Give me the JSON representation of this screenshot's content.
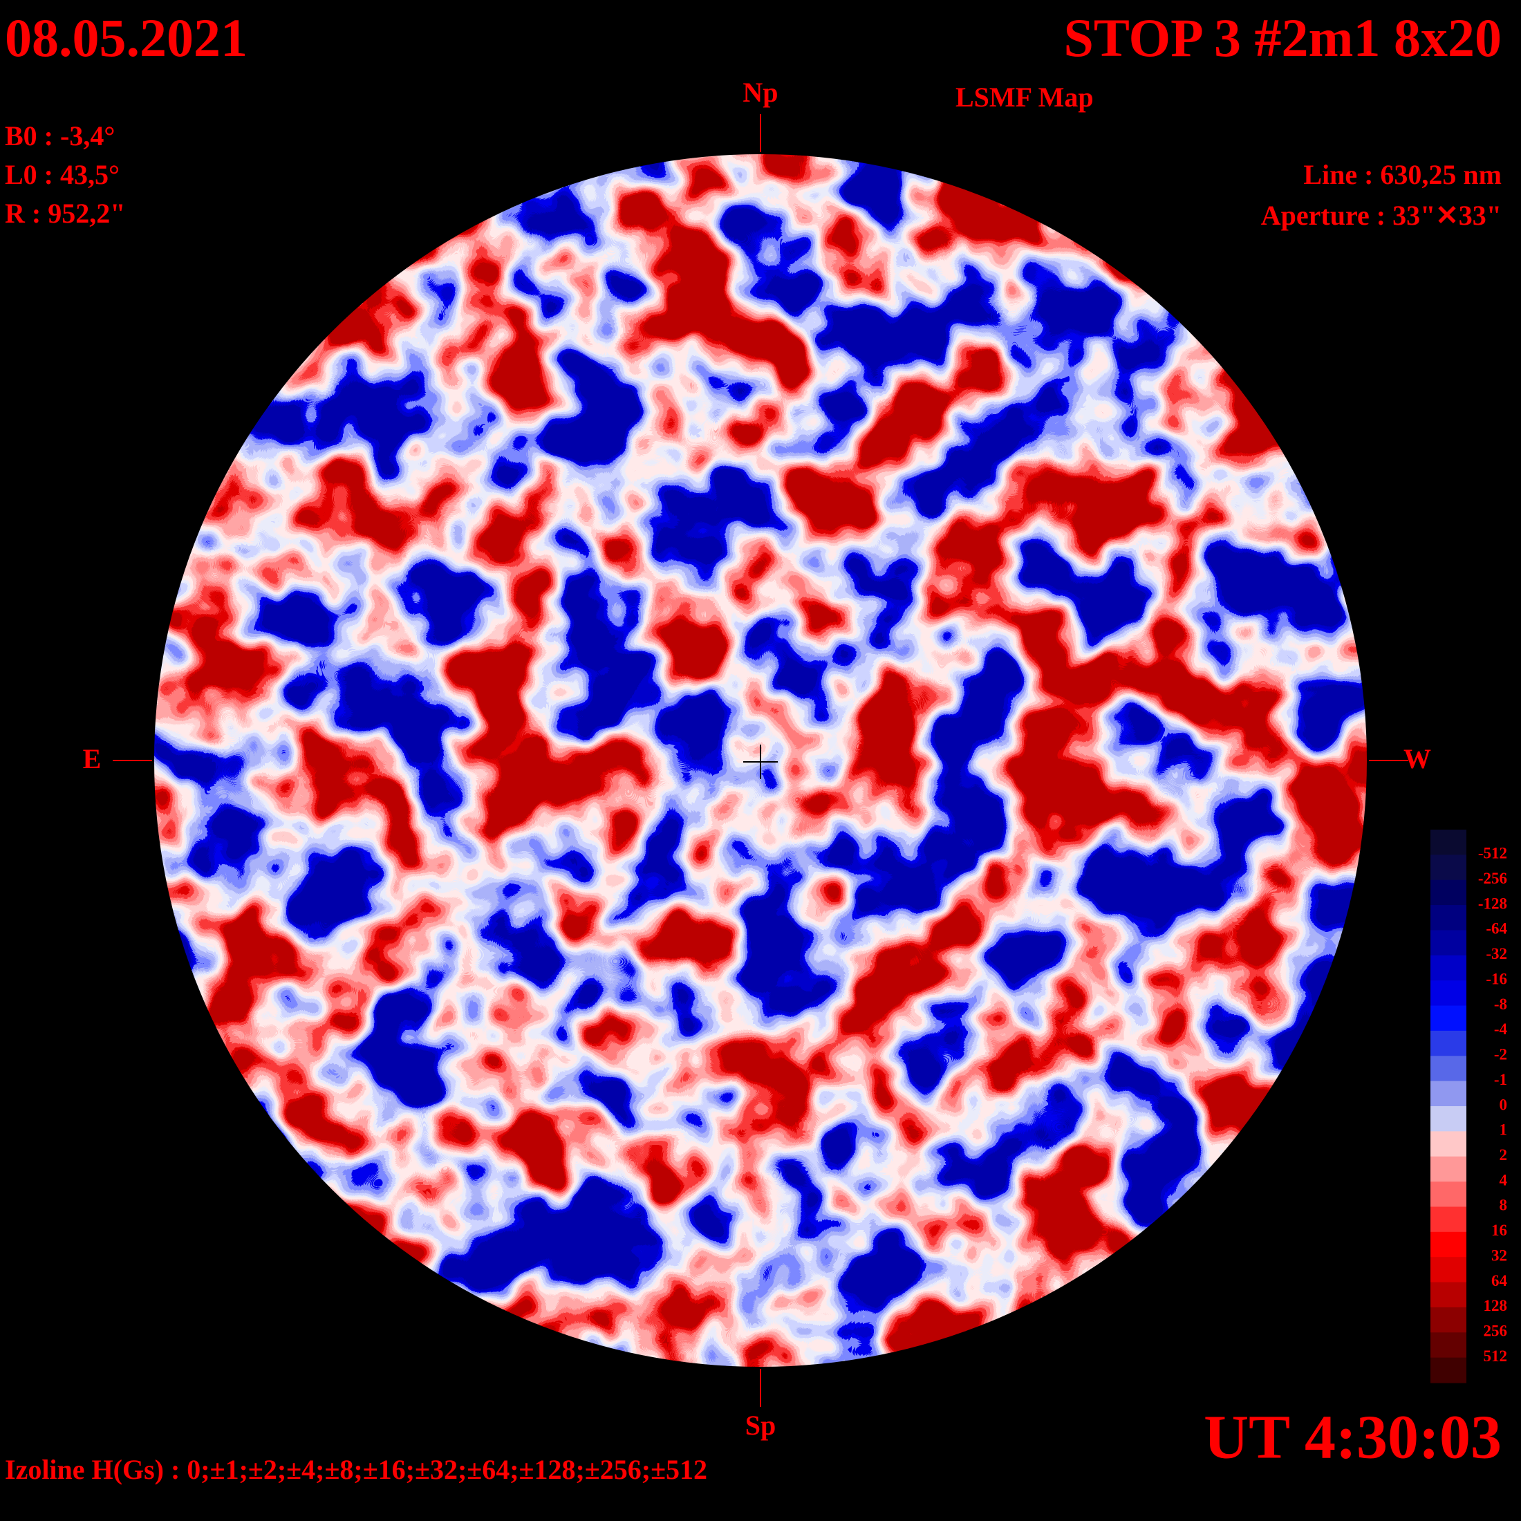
{
  "header": {
    "date": "08.05.2021",
    "title": "STOP 3 #2m1 8x20",
    "subtitle": "LSMF  Map",
    "time": "UT 4:30:03"
  },
  "params": {
    "b0": "B0 : -3,4°",
    "l0": "L0 : 43,5°",
    "r": "R  : 952,2\"",
    "line": "Line :  630,25 nm",
    "aperture": "Aperture : 33\"✕33\""
  },
  "directions": {
    "north": "Np",
    "south": "Sp",
    "east": "E",
    "west": "W"
  },
  "footer": {
    "izoline": "Izoline H(Gs) : 0;±1;±2;±4;±8;±16;±32;±64;±128;±256;±512"
  },
  "colorbar": {
    "labels": [
      -512,
      -256,
      -128,
      -64,
      -32,
      -16,
      -8,
      -4,
      -2,
      -1,
      0,
      1,
      2,
      4,
      8,
      16,
      32,
      64,
      128,
      256,
      512
    ],
    "colors": [
      "#0a0a30",
      "#0a0a4a",
      "#000060",
      "#000080",
      "#0000a0",
      "#0000c8",
      "#0000e6",
      "#0010ff",
      "#2a3be8",
      "#5868e8",
      "#9098f0",
      "#c8ccf4",
      "#ffc8c8",
      "#ff9898",
      "#ff6868",
      "#ff3030",
      "#ff0000",
      "#e00000",
      "#b80000",
      "#8c0000",
      "#640000",
      "#400000"
    ]
  }
}
